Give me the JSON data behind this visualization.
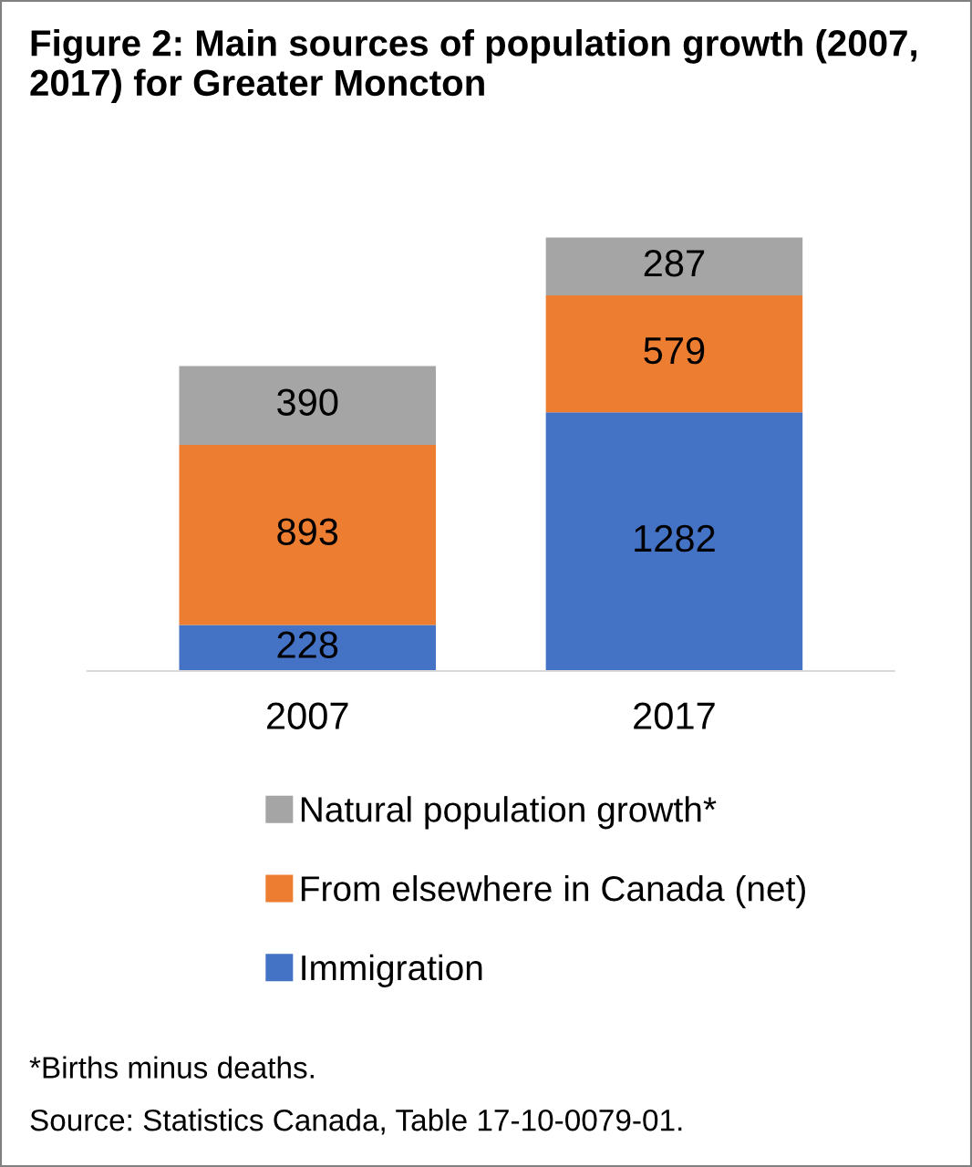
{
  "chart_data": {
    "type": "bar",
    "stacked": true,
    "title": "Figure 2: Main sources of population growth (2007, 2017) for Greater Moncton",
    "categories": [
      "2007",
      "2017"
    ],
    "series": [
      {
        "name": "Immigration",
        "color": "#4472c4",
        "values": [
          228,
          1282
        ]
      },
      {
        "name": "From elsewhere in Canada (net)",
        "color": "#ed7d31",
        "values": [
          893,
          579
        ]
      },
      {
        "name": "Natural population growth*",
        "color": "#a5a5a5",
        "values": [
          390,
          287
        ]
      }
    ],
    "data_labels": true,
    "legend": "bottom",
    "grid": false,
    "annotations": [
      "*Births minus deaths.",
      "Source: Statistics Canada, Table 17-10-0079-01."
    ]
  }
}
